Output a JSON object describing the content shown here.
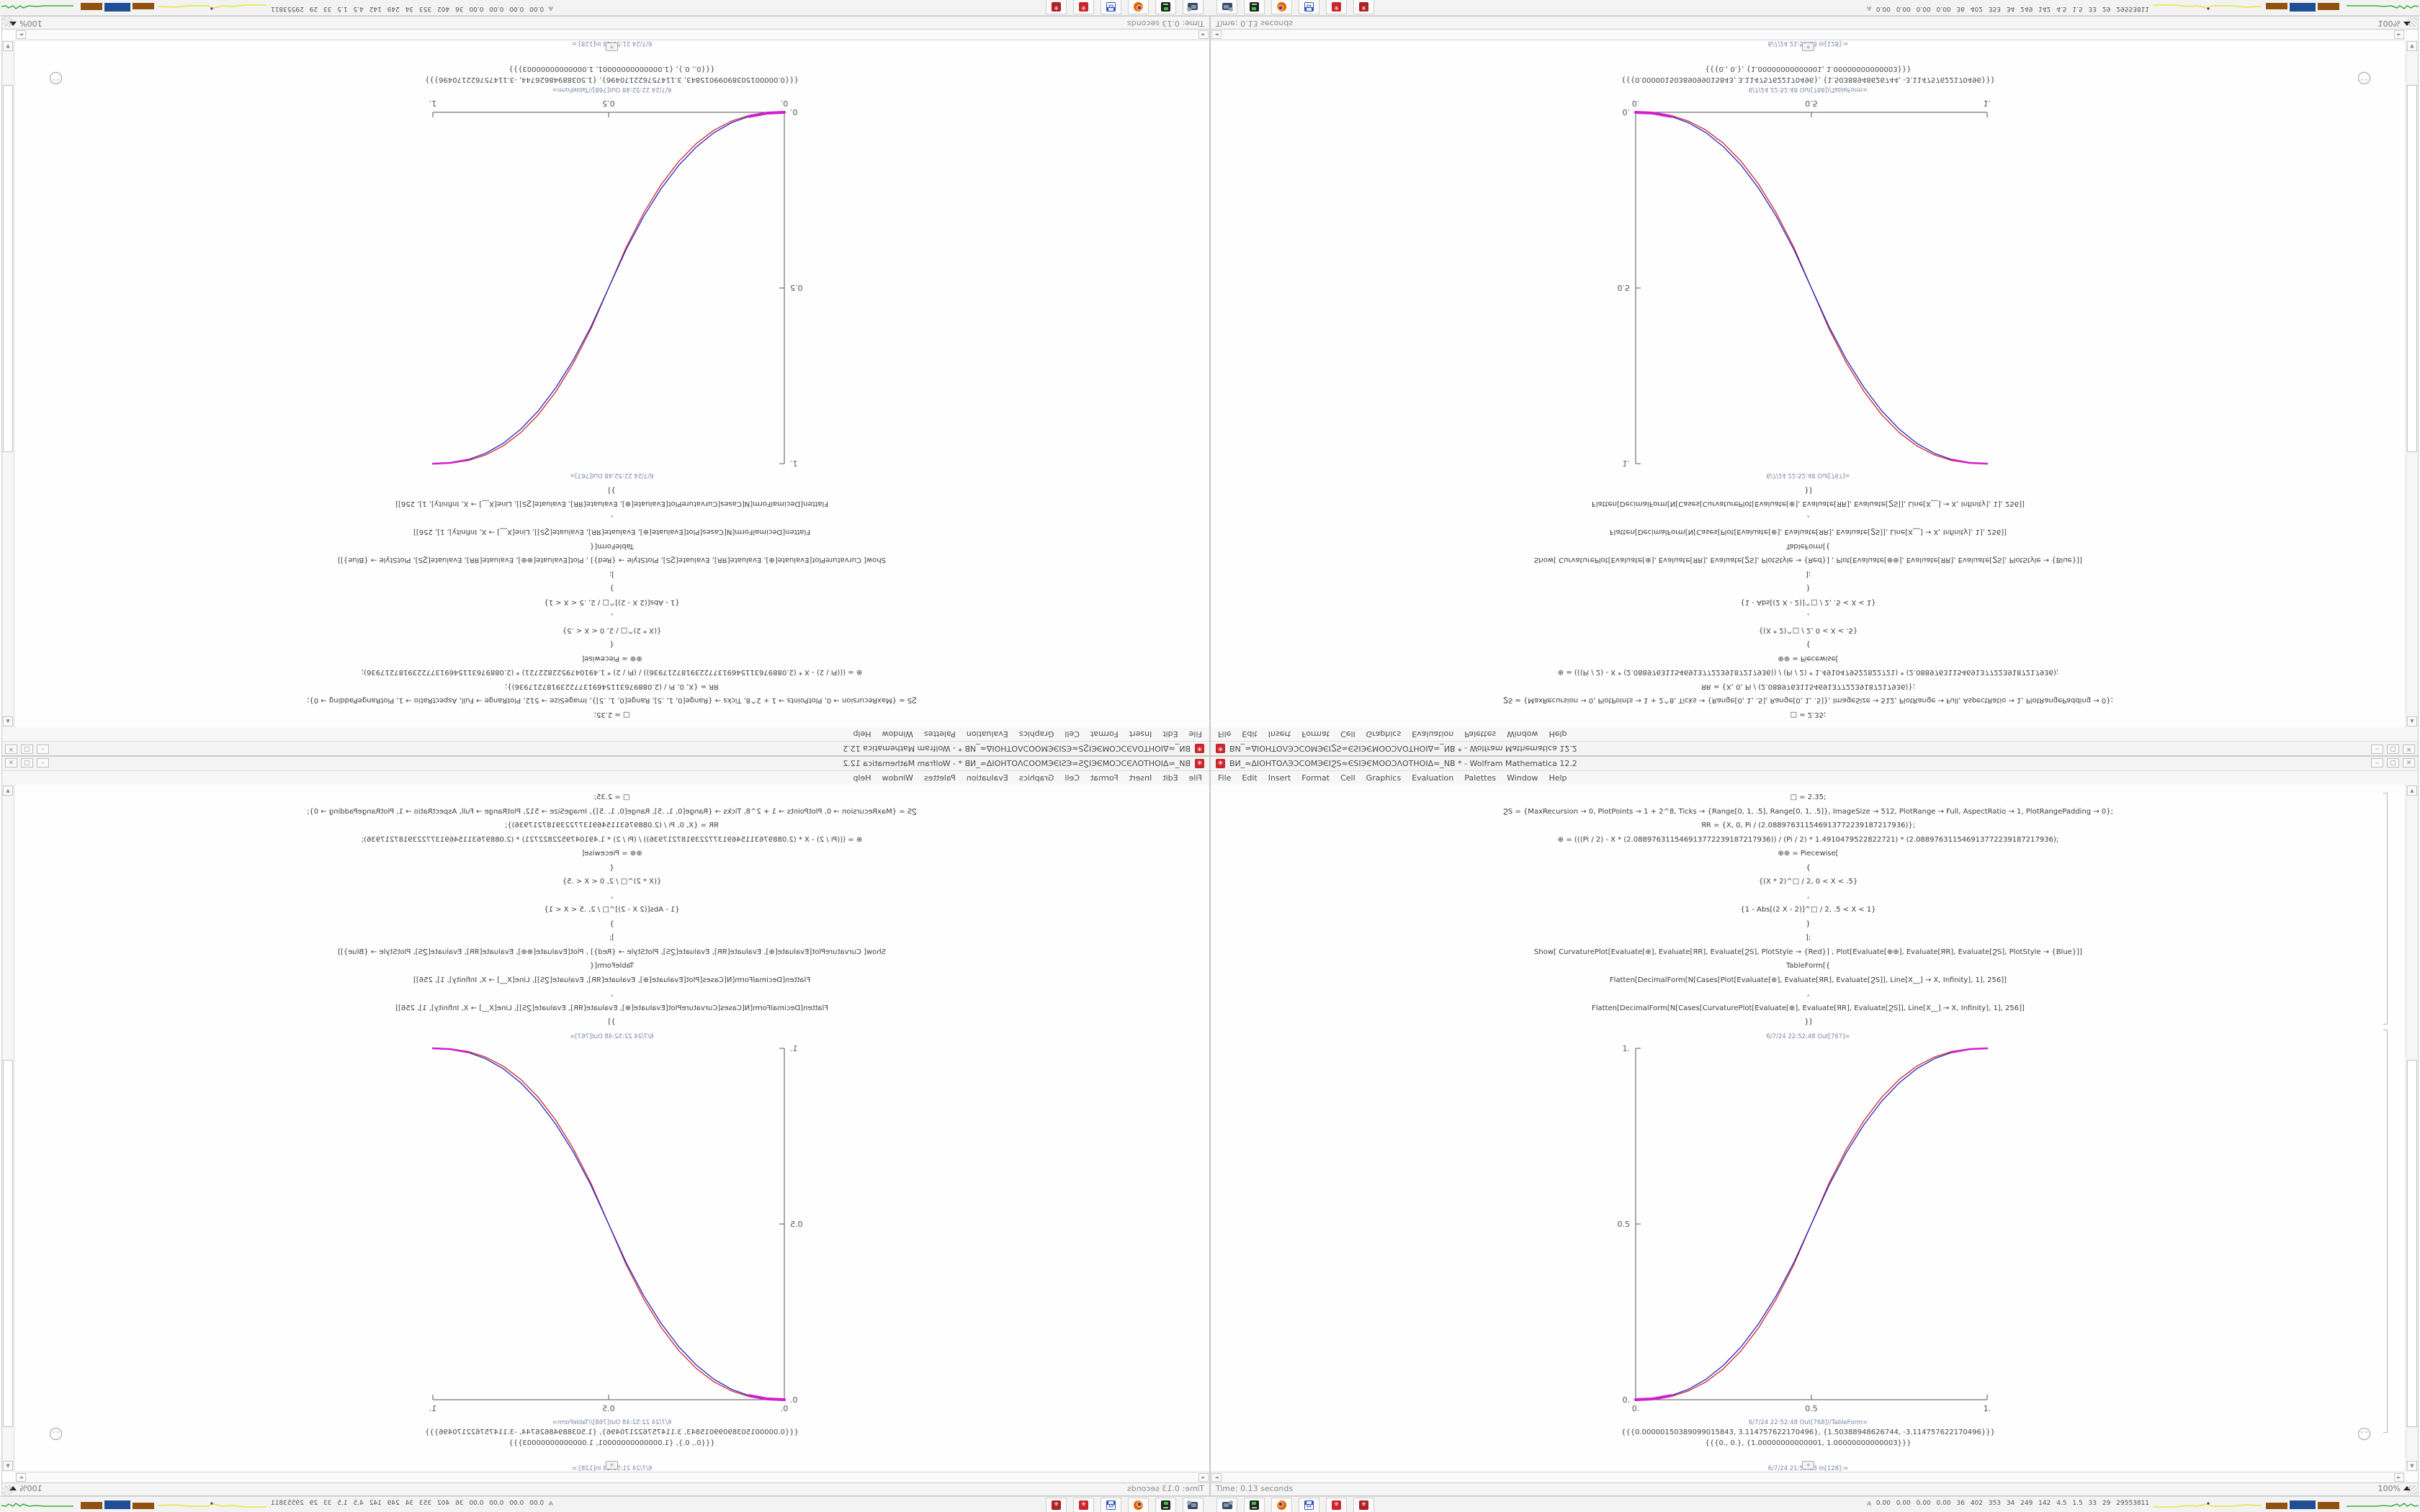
{
  "window": {
    "title": "ВИ_≈ΔIOHTOΛЭƆCOMЭЄIϨЅ≈ЄЅIЭЄMOOƆΛOTHOIΔ≈_NB * - Wolfram Mathematica 12.2",
    "app_icon_glyph": "✳",
    "controls": {
      "minimize": "–",
      "maximize": "▢",
      "close": "✕"
    },
    "menu": [
      "File",
      "Edit",
      "Insert",
      "Format",
      "Cell",
      "Graphics",
      "Evaluation",
      "Palettes",
      "Window",
      "Help"
    ],
    "status_left": "Time: 0.13 seconds",
    "zoom_value": "100%",
    "scroll_up_glyph": "▲",
    "scroll_down_glyph": "▼",
    "chevron_glyph": "⌄⌄"
  },
  "notebook": {
    "input_lines": [
      "□ = 2.35;",
      "ϨЅ = {MaxRecursion → 0, PlotPoints → 1 + 2^8, Ticks → {Range[0, 1, .5], Range[0, 1, .5]}, ImageSize → 512, PlotRange → Full, AspectRatio → 1, PlotRangePadding → 0};",
      "ЯR = {X, 0, Pi / (2.088976311546913772239187217936)};",
      "⊕ = (((Pi / 2) - X * (2.088976311546913772239187217936)) / (Pi / 2) * 1.4910479522822721) * (2.088976311546913772239187217936);",
      "⊕⊕ = Piecewise[",
      "{",
      "{(X * 2)^□ / 2, 0 < X < .5}",
      ",",
      "{1 - Abs[(2 X - 2)]^□ / 2, .5 < X < 1}",
      "}",
      "];",
      "Show[  CurvaturePlot[Evaluate[⊕], Evaluate[ЯR], Evaluate[ϨЅ], PlotStyle → {Red}]  ,  Plot[Evaluate[⊕⊕], Evaluate[ЯR], Evaluate[ϨЅ],  PlotStyle → {Blue}]]",
      "TableForm[{",
      "Flatten[DecimalForm[N[Cases[Plot[Evaluate[⊕], Evaluate[ЯR], Evaluate[ϨЅ]], Line[X__] → X, Infinity], 1], 256]]",
      ",",
      "Flatten[DecimalForm[N[Cases[CurvaturePlot[Evaluate[⊕], Evaluate[ЯR], Evaluate[ϨЅ]], Line[X__] → X, Infinity], 1], 256]]",
      "}]"
    ],
    "out767_label": "6/7/24 22:52:48 Out[767]=",
    "out768_label": "6/7/24 22:52:48 Out[768]//TableForm=",
    "table_rows": [
      "{{{0.00000150389099015843, 3.114757622170496}, {1.50388948626744, -3.114757622170496}}}",
      "{{{0., 0.}, {1.00000000000001, 1.00000000000003}}}"
    ],
    "insert_plus": "+",
    "in_label": "6/7/24 21:59:13 In[128]:="
  },
  "chart_data": {
    "type": "line",
    "title": "",
    "xlabel": "",
    "ylabel": "",
    "xlim": [
      0,
      1
    ],
    "ylim": [
      0,
      1
    ],
    "x_tick_labels": [
      "0.",
      "0.5",
      "1."
    ],
    "y_tick_labels": [
      "1.",
      "0.5",
      "0."
    ],
    "grid": false,
    "legend_position": "none",
    "aspect_ratio": 1,
    "accent_color": "#cf1fcf",
    "series": [
      {
        "name": "CurvaturePlot (Red)",
        "color": "#d42525",
        "x": [
          0,
          0.05,
          0.1,
          0.15,
          0.2,
          0.25,
          0.3,
          0.35,
          0.4,
          0.45,
          0.5,
          0.55,
          0.6,
          0.65,
          0.7,
          0.75,
          0.8,
          0.85,
          0.9,
          0.95,
          1
        ],
        "y": [
          0,
          0.0016,
          0.0089,
          0.0247,
          0.0506,
          0.0884,
          0.1395,
          0.205,
          0.2862,
          0.3842,
          0.5,
          0.6158,
          0.7138,
          0.795,
          0.8605,
          0.9116,
          0.9494,
          0.9753,
          0.9911,
          0.9984,
          1
        ]
      },
      {
        "name": "Plot (Blue)",
        "color": "#2424c8",
        "x": [
          0,
          0.05,
          0.1,
          0.15,
          0.2,
          0.25,
          0.3,
          0.35,
          0.4,
          0.45,
          0.5,
          0.55,
          0.6,
          0.65,
          0.7,
          0.75,
          0.8,
          0.85,
          0.9,
          0.95,
          1
        ],
        "y": [
          0,
          0.0022,
          0.0114,
          0.0295,
          0.058,
          0.0981,
          0.1505,
          0.2163,
          0.296,
          0.3903,
          0.5,
          0.6097,
          0.704,
          0.7837,
          0.8495,
          0.9019,
          0.942,
          0.9705,
          0.9886,
          0.9978,
          1
        ]
      }
    ]
  },
  "taskbar": {
    "apps": [
      {
        "name": "screenshot-tool"
      },
      {
        "name": "disk-utility"
      },
      {
        "name": "firefox"
      },
      {
        "name": "floppy-64",
        "label": "64"
      },
      {
        "name": "mathematica-1",
        "glyph": "✳"
      },
      {
        "name": "mathematica-2",
        "glyph": "✳"
      }
    ],
    "tray_icon": "Ѧ",
    "tray_stats": "0.00 0.00 0.00 0.00 36 402 353 34 249 142 4.5 1.5 33 29 29553811",
    "spark_yellow": "#e9e966",
    "spark_green": "#3fae3f",
    "bar_brown": "#92520f",
    "bar_blue": "#1f4e94",
    "dot_purple": "#7a1fa0"
  }
}
